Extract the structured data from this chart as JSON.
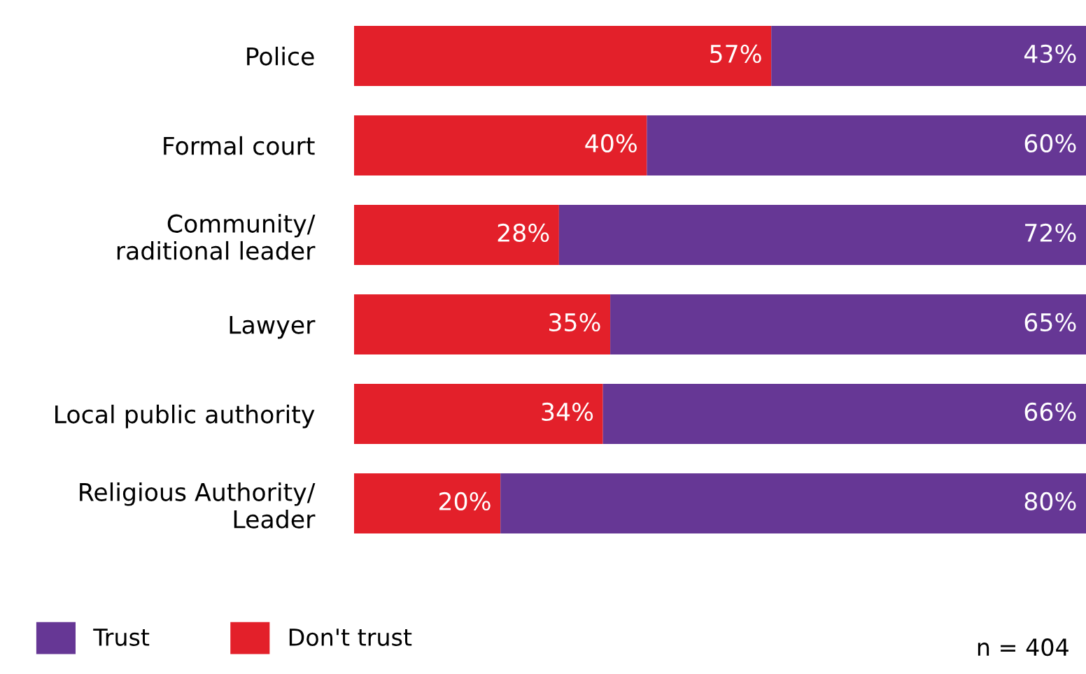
{
  "chart_data": {
    "type": "bar",
    "orientation": "horizontal",
    "stacked": true,
    "categories": [
      "Police",
      "Formal court",
      "Community/\nraditional leader",
      "Lawyer",
      "Local public authority",
      "Religious Authority/\nLeader"
    ],
    "series": [
      {
        "name": "Don't trust",
        "color": "#e3202a",
        "values": [
          57,
          40,
          28,
          35,
          34,
          20
        ],
        "value_labels": [
          "57%",
          "40%",
          "28%",
          "35%",
          "34%",
          "20%"
        ]
      },
      {
        "name": "Trust",
        "color": "#663795",
        "values": [
          43,
          60,
          72,
          65,
          66,
          80
        ],
        "value_labels": [
          "43%",
          "60%",
          "72%",
          "65%",
          "66%",
          "80%"
        ]
      }
    ],
    "xlim": [
      0,
      100
    ],
    "tick_labels": "y",
    "grid": false,
    "legend": "bottom left",
    "annotations": [
      "n = 404"
    ]
  }
}
